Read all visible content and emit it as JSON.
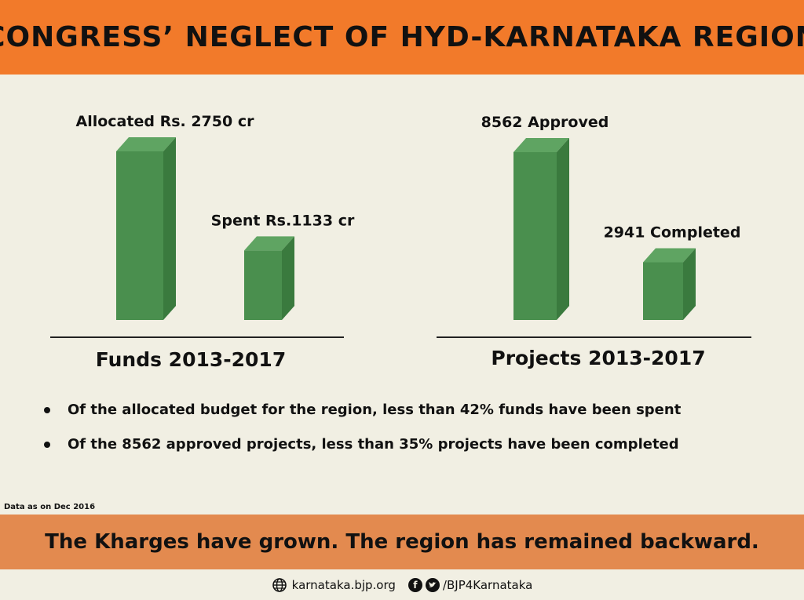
{
  "header": {
    "title": "CONGRESS’ NEGLECT OF HYD-KARNATAKA REGION"
  },
  "chart_data": [
    {
      "type": "bar",
      "title": "",
      "xlabel": "Funds 2013-2017",
      "categories": [
        "Allocated",
        "Spent"
      ],
      "values": [
        2750,
        1133
      ],
      "data_labels": [
        "Allocated Rs. 2750 cr",
        "Spent Rs.1133 cr"
      ],
      "ylim": [
        0,
        2750
      ],
      "grid": false
    },
    {
      "type": "bar",
      "title": "",
      "xlabel": "Projects 2013-2017",
      "categories": [
        "Approved",
        "Completed"
      ],
      "values": [
        8562,
        2941
      ],
      "data_labels": [
        "8562 Approved",
        "2941 Completed"
      ],
      "ylim": [
        0,
        8562
      ],
      "grid": false
    }
  ],
  "colors": {
    "bar_front": "#4a8f4e",
    "bar_top": "#5fa462",
    "bar_side": "#3a7a3e",
    "header_bg": "#f27a2a",
    "banner_bg": "#e38a4f",
    "page_bg": "#f1efe3"
  },
  "bullets": [
    "Of the allocated budget for the region, less than 42% funds have been spent",
    "Of the 8562 approved projects, less than 35% projects have been completed"
  ],
  "note": "Data as on Dec 2016",
  "banner": {
    "text": "The Kharges have grown. The region has remained backward."
  },
  "footer": {
    "website": "karnataka.bjp.org",
    "handle": "/BJP4Karnataka",
    "icons": [
      "globe-icon",
      "facebook-icon",
      "twitter-icon"
    ]
  }
}
